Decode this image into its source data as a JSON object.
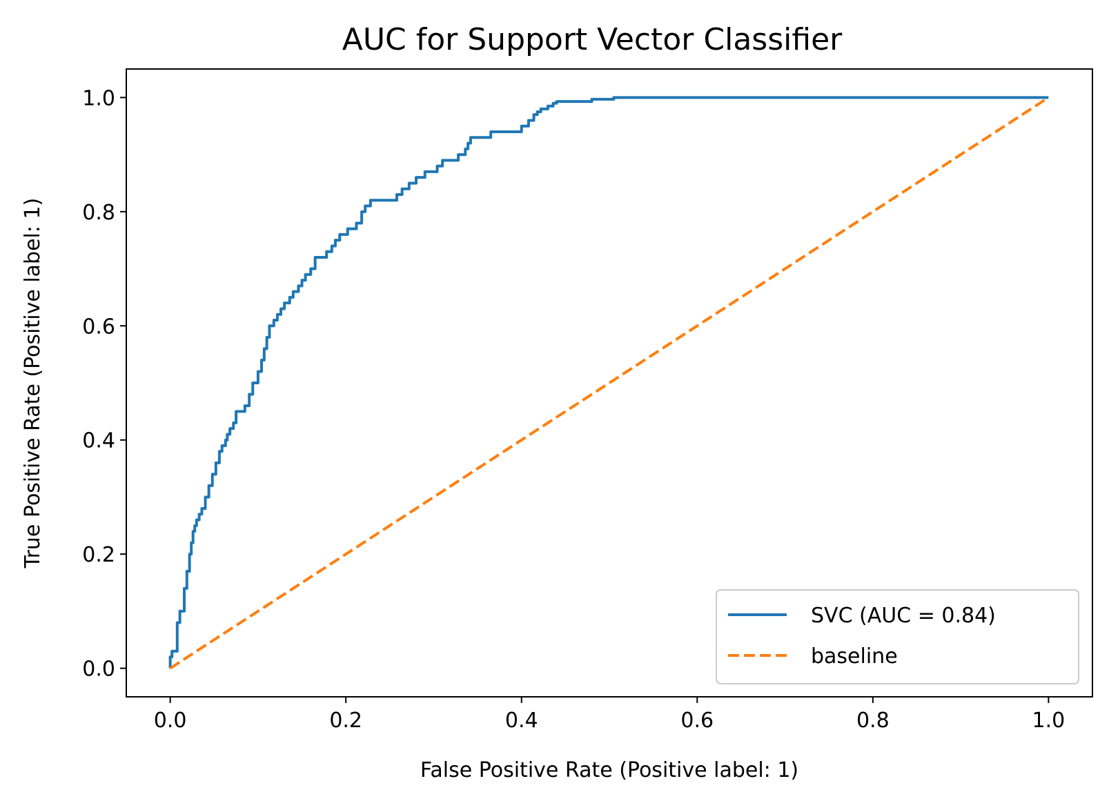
{
  "chart_data": {
    "type": "line",
    "title": "AUC for Support Vector Classifier",
    "xlabel": "False Positive Rate (Positive label: 1)",
    "ylabel": "True Positive Rate (Positive label: 1)",
    "xlim": [
      -0.05,
      1.05
    ],
    "ylim": [
      -0.05,
      1.05
    ],
    "xticks": [
      "0.0",
      "0.2",
      "0.4",
      "0.6",
      "0.8",
      "1.0"
    ],
    "yticks": [
      "0.0",
      "0.2",
      "0.4",
      "0.6",
      "0.8",
      "1.0"
    ],
    "grid": false,
    "legend_position": "lower-right",
    "series": [
      {
        "name": "SVC (AUC = 0.84)",
        "color": "#1f77b4",
        "style": "solid",
        "x": [
          0.0,
          0.0,
          0.002,
          0.002,
          0.008,
          0.008,
          0.011,
          0.011,
          0.016,
          0.016,
          0.019,
          0.019,
          0.022,
          0.022,
          0.024,
          0.024,
          0.026,
          0.026,
          0.028,
          0.028,
          0.03,
          0.03,
          0.033,
          0.033,
          0.036,
          0.036,
          0.04,
          0.04,
          0.044,
          0.044,
          0.048,
          0.048,
          0.052,
          0.052,
          0.056,
          0.056,
          0.059,
          0.059,
          0.063,
          0.063,
          0.065,
          0.065,
          0.068,
          0.068,
          0.072,
          0.072,
          0.075,
          0.075,
          0.085,
          0.085,
          0.09,
          0.09,
          0.094,
          0.094,
          0.1,
          0.1,
          0.104,
          0.104,
          0.107,
          0.107,
          0.11,
          0.11,
          0.113,
          0.113,
          0.118,
          0.118,
          0.122,
          0.122,
          0.126,
          0.126,
          0.13,
          0.13,
          0.136,
          0.136,
          0.14,
          0.14,
          0.146,
          0.146,
          0.15,
          0.15,
          0.154,
          0.154,
          0.16,
          0.16,
          0.165,
          0.165,
          0.178,
          0.178,
          0.184,
          0.184,
          0.188,
          0.188,
          0.193,
          0.193,
          0.196,
          0.196,
          0.202,
          0.202,
          0.212,
          0.212,
          0.218,
          0.218,
          0.222,
          0.222,
          0.228,
          0.228,
          0.258,
          0.258,
          0.264,
          0.264,
          0.272,
          0.272,
          0.28,
          0.28,
          0.29,
          0.29,
          0.3,
          0.3,
          0.304,
          0.304,
          0.31,
          0.31,
          0.328,
          0.328,
          0.336,
          0.336,
          0.339,
          0.339,
          0.342,
          0.342,
          0.365,
          0.365,
          0.4,
          0.4,
          0.408,
          0.408,
          0.414,
          0.414,
          0.418,
          0.418,
          0.422,
          0.422,
          0.43,
          0.43,
          0.436,
          0.436,
          0.44,
          0.44,
          0.48,
          0.48,
          0.505,
          0.505,
          0.508,
          0.508,
          0.52,
          0.52,
          0.525,
          0.525,
          0.55,
          0.55,
          0.57,
          0.57,
          0.655,
          0.655,
          0.865,
          0.865,
          1.0
        ],
        "y": [
          0.0,
          0.02,
          0.02,
          0.03,
          0.03,
          0.08,
          0.08,
          0.1,
          0.1,
          0.14,
          0.14,
          0.17,
          0.17,
          0.2,
          0.2,
          0.22,
          0.22,
          0.24,
          0.24,
          0.25,
          0.25,
          0.26,
          0.26,
          0.27,
          0.27,
          0.28,
          0.28,
          0.3,
          0.3,
          0.32,
          0.32,
          0.34,
          0.34,
          0.36,
          0.36,
          0.38,
          0.38,
          0.39,
          0.39,
          0.4,
          0.4,
          0.41,
          0.41,
          0.42,
          0.42,
          0.43,
          0.43,
          0.45,
          0.45,
          0.46,
          0.46,
          0.48,
          0.48,
          0.5,
          0.5,
          0.52,
          0.52,
          0.54,
          0.54,
          0.56,
          0.56,
          0.58,
          0.58,
          0.6,
          0.6,
          0.61,
          0.61,
          0.62,
          0.62,
          0.63,
          0.63,
          0.64,
          0.64,
          0.65,
          0.65,
          0.66,
          0.66,
          0.67,
          0.67,
          0.68,
          0.68,
          0.69,
          0.69,
          0.7,
          0.7,
          0.72,
          0.72,
          0.73,
          0.73,
          0.74,
          0.74,
          0.75,
          0.75,
          0.76,
          0.76,
          0.76,
          0.76,
          0.77,
          0.77,
          0.78,
          0.78,
          0.8,
          0.8,
          0.81,
          0.81,
          0.82,
          0.82,
          0.83,
          0.83,
          0.84,
          0.84,
          0.85,
          0.85,
          0.86,
          0.86,
          0.87,
          0.87,
          0.87,
          0.87,
          0.88,
          0.88,
          0.89,
          0.89,
          0.9,
          0.9,
          0.91,
          0.91,
          0.92,
          0.92,
          0.93,
          0.93,
          0.94,
          0.94,
          0.95,
          0.95,
          0.96,
          0.96,
          0.97,
          0.97,
          0.975,
          0.975,
          0.98,
          0.98,
          0.985,
          0.985,
          0.99,
          0.99,
          0.993,
          0.993,
          0.997,
          0.997,
          1.0,
          1.0,
          1.0,
          1.0,
          1.0,
          1.0,
          1.0,
          1.0,
          1.0,
          1.0,
          1.0,
          1.0,
          1.0,
          1.0,
          1.0,
          1.0
        ]
      },
      {
        "name": "baseline",
        "color": "#ff7f0e",
        "style": "dashed",
        "x": [
          0.0,
          1.0
        ],
        "y": [
          0.0,
          1.0
        ]
      }
    ]
  }
}
